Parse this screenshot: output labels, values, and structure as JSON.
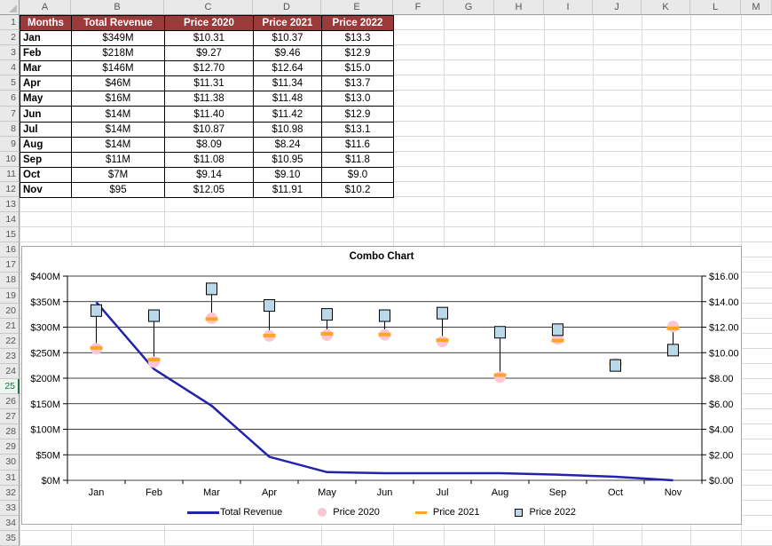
{
  "spreadsheet": {
    "column_headers": [
      "A",
      "B",
      "C",
      "D",
      "E",
      "F",
      "G",
      "H",
      "I",
      "J",
      "K",
      "L",
      "M"
    ],
    "row_count": 35,
    "active_row": 25,
    "table": {
      "header_bg": "#9C3A3A",
      "headers": [
        "Months",
        "Total Revenue",
        "Price 2020",
        "Price 2021",
        "Price 2022"
      ],
      "rows": [
        [
          "Jan",
          "$349M",
          "$10.31",
          "$10.37",
          "$13.3"
        ],
        [
          "Feb",
          "$218M",
          "$9.27",
          "$9.46",
          "$12.9"
        ],
        [
          "Mar",
          "$146M",
          "$12.70",
          "$12.64",
          "$15.0"
        ],
        [
          "Apr",
          "$46M",
          "$11.31",
          "$11.34",
          "$13.7"
        ],
        [
          "May",
          "$16M",
          "$11.38",
          "$11.48",
          "$13.0"
        ],
        [
          "Jun",
          "$14M",
          "$11.40",
          "$11.42",
          "$12.9"
        ],
        [
          "Jul",
          "$14M",
          "$10.87",
          "$10.98",
          "$13.1"
        ],
        [
          "Aug",
          "$14M",
          "$8.09",
          "$8.24",
          "$11.6"
        ],
        [
          "Sep",
          "$11M",
          "$11.08",
          "$10.95",
          "$11.8"
        ],
        [
          "Oct",
          "$7M",
          "$9.14",
          "$9.10",
          "$9.0"
        ],
        [
          "Nov",
          "$95",
          "$12.05",
          "$11.91",
          "$10.2"
        ]
      ]
    }
  },
  "chart_data": {
    "type": "combo",
    "title": "Combo Chart",
    "categories": [
      "Jan",
      "Feb",
      "Mar",
      "Apr",
      "May",
      "Jun",
      "Jul",
      "Aug",
      "Sep",
      "Oct",
      "Nov"
    ],
    "series": [
      {
        "name": "Total Revenue",
        "type": "line",
        "axis": "left",
        "values": [
          349,
          218,
          146,
          46,
          16,
          14,
          14,
          14,
          11,
          7,
          0.0001
        ],
        "color": "#2222AA"
      },
      {
        "name": "Price 2020",
        "type": "circle-marker",
        "axis": "right",
        "values": [
          10.31,
          9.27,
          12.7,
          11.31,
          11.38,
          11.4,
          10.87,
          8.09,
          11.08,
          9.14,
          12.05
        ],
        "color": "#FAC6D1"
      },
      {
        "name": "Price 2021",
        "type": "dash-marker",
        "axis": "right",
        "values": [
          10.37,
          9.46,
          12.64,
          11.34,
          11.48,
          11.42,
          10.98,
          8.24,
          10.95,
          9.1,
          11.91
        ],
        "color": "#FFA428"
      },
      {
        "name": "Price 2022",
        "type": "square-marker",
        "axis": "right",
        "values": [
          13.3,
          12.9,
          15.0,
          13.7,
          13.0,
          12.9,
          13.1,
          11.6,
          11.8,
          9.0,
          10.2
        ],
        "color": "#B9D9EA",
        "stroke": "#000000"
      }
    ],
    "left_axis": {
      "min": 0,
      "max": 400,
      "step": 50,
      "labels_top_to_bottom": [
        "$400M",
        "$350M",
        "$300M",
        "$250M",
        "$200M",
        "$150M",
        "$100M",
        "$50M",
        "$0M"
      ]
    },
    "right_axis": {
      "min": 0,
      "max": 16,
      "step": 2,
      "labels_top_to_bottom": [
        "$16.00",
        "$14.00",
        "$12.00",
        "$10.00",
        "$8.00",
        "$6.00",
        "$4.00",
        "$2.00",
        "$0.00"
      ]
    },
    "high_low_lines": true,
    "grid": true,
    "legend_position": "bottom"
  }
}
